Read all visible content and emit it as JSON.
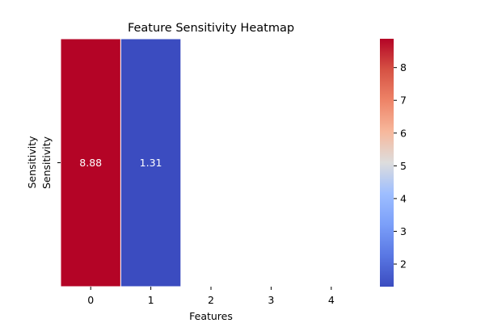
{
  "chart_data": {
    "type": "heatmap",
    "title": "Feature Sensitivity Heatmap",
    "xlabel": "Features",
    "ylabel": "Sensitivity",
    "x_ticks": [
      "0",
      "1",
      "2",
      "3",
      "4"
    ],
    "y_ticks": [
      "Sensitivity"
    ],
    "cells": [
      {
        "x": "0",
        "y": "Sensitivity",
        "value": 8.88,
        "label": "8.88"
      },
      {
        "x": "1",
        "y": "Sensitivity",
        "value": 1.31,
        "label": "1.31"
      }
    ],
    "colormap": "coolwarm",
    "colorbar": {
      "range": [
        1.31,
        8.88
      ],
      "ticks": [
        2,
        3,
        4,
        5,
        6,
        7,
        8
      ],
      "tick_labels": [
        "2",
        "3",
        "4",
        "5",
        "6",
        "7",
        "8"
      ],
      "colors": {
        "low": "#3b4cc0",
        "mid": "#dddddd",
        "high": "#b40426"
      }
    },
    "grid": false,
    "legend": "right"
  }
}
